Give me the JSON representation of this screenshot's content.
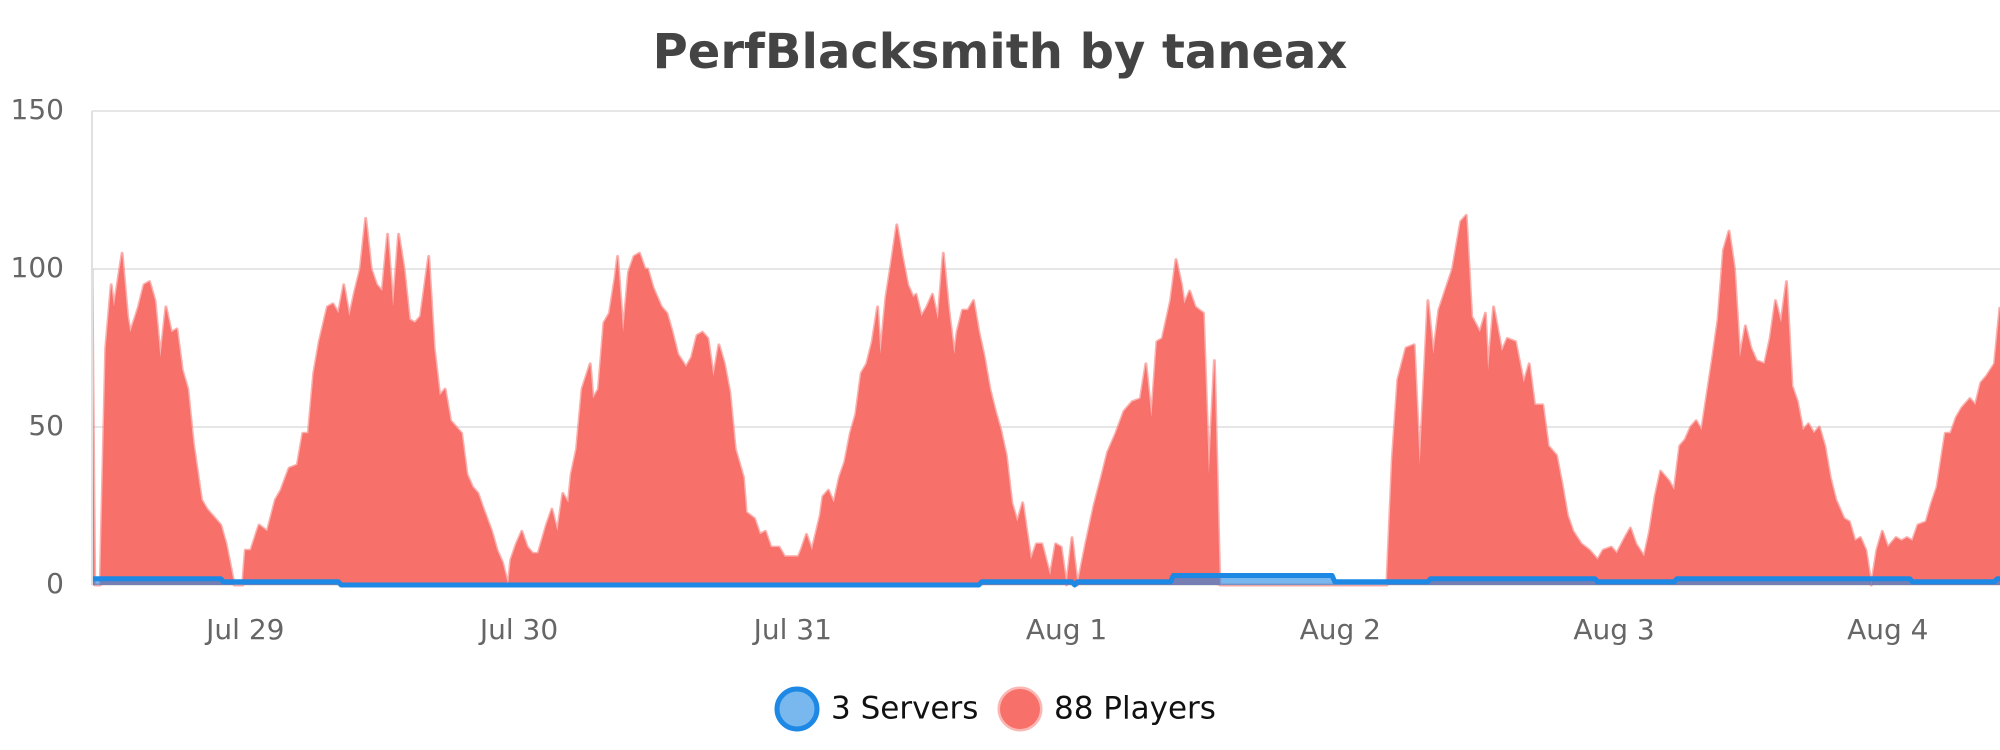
{
  "chart_data": {
    "type": "area",
    "title": "PerfBlacksmith by taneax",
    "xlim": [
      -0.56,
      6.41
    ],
    "xticks": [
      {
        "value": 0,
        "label": "Jul 29"
      },
      {
        "value": 1,
        "label": "Jul 30"
      },
      {
        "value": 2,
        "label": "Jul 31"
      },
      {
        "value": 3,
        "label": "Aug 1"
      },
      {
        "value": 4,
        "label": "Aug 2"
      },
      {
        "value": 5,
        "label": "Aug 3"
      },
      {
        "value": 6,
        "label": "Aug 4"
      }
    ],
    "ylim": [
      0,
      150
    ],
    "yticks": [
      0,
      50,
      100,
      150
    ],
    "grid": true,
    "series": [
      {
        "name": "3 Servers",
        "color": "#1e88e5",
        "x": [
          -0.56,
          -0.09,
          -0.08,
          0.34,
          0.35,
          2.68,
          2.69,
          3.02,
          3.03,
          3.04,
          3.38,
          3.39,
          3.97,
          3.98,
          4.32,
          4.33,
          4.93,
          4.94,
          5.22,
          5.23,
          6.08,
          6.09,
          6.39,
          6.4,
          6.41
        ],
        "values": [
          2,
          2,
          1,
          1,
          0,
          0,
          1,
          1,
          0,
          1,
          1,
          3,
          3,
          1,
          1,
          2,
          2,
          1,
          1,
          2,
          2,
          1,
          1,
          2,
          2
        ]
      },
      {
        "name": "88 Players",
        "color": "#f7706a",
        "x": [
          -0.56,
          -0.55,
          -0.53,
          -0.51,
          -0.49,
          -0.48,
          -0.45,
          -0.43,
          -0.42,
          -0.39,
          -0.37,
          -0.35,
          -0.33,
          -0.31,
          -0.29,
          -0.27,
          -0.25,
          -0.23,
          -0.21,
          -0.19,
          -0.16,
          -0.14,
          -0.11,
          -0.09,
          -0.07,
          -0.04,
          -0.01,
          0.0,
          0.02,
          0.05,
          0.08,
          0.11,
          0.13,
          0.16,
          0.19,
          0.21,
          0.23,
          0.25,
          0.27,
          0.3,
          0.32,
          0.34,
          0.36,
          0.38,
          0.4,
          0.42,
          0.44,
          0.46,
          0.48,
          0.5,
          0.52,
          0.54,
          0.56,
          0.58,
          0.6,
          0.62,
          0.64,
          0.67,
          0.69,
          0.71,
          0.73,
          0.75,
          0.77,
          0.79,
          0.81,
          0.83,
          0.85,
          0.87,
          0.9,
          0.92,
          0.94,
          0.96,
          0.97,
          0.99,
          1.01,
          1.03,
          1.05,
          1.07,
          1.1,
          1.12,
          1.14,
          1.16,
          1.18,
          1.19,
          1.21,
          1.23,
          1.26,
          1.27,
          1.29,
          1.31,
          1.33,
          1.35,
          1.36,
          1.38,
          1.4,
          1.42,
          1.44,
          1.46,
          1.47,
          1.49,
          1.52,
          1.54,
          1.56,
          1.58,
          1.61,
          1.63,
          1.65,
          1.67,
          1.69,
          1.71,
          1.73,
          1.75,
          1.77,
          1.79,
          1.82,
          1.83,
          1.86,
          1.88,
          1.9,
          1.92,
          1.95,
          1.97,
          1.99,
          2.02,
          2.03,
          2.05,
          2.07,
          2.1,
          2.11,
          2.13,
          2.15,
          2.17,
          2.19,
          2.21,
          2.23,
          2.25,
          2.27,
          2.29,
          2.31,
          2.32,
          2.34,
          2.36,
          2.38,
          2.4,
          2.42,
          2.44,
          2.45,
          2.47,
          2.49,
          2.51,
          2.53,
          2.55,
          2.57,
          2.59,
          2.6,
          2.62,
          2.64,
          2.66,
          2.68,
          2.7,
          2.72,
          2.74,
          2.76,
          2.78,
          2.8,
          2.82,
          2.84,
          2.86,
          2.87,
          2.89,
          2.91,
          2.94,
          2.96,
          2.98,
          3.0,
          3.02,
          3.04,
          3.07,
          3.1,
          3.13,
          3.15,
          3.18,
          3.21,
          3.24,
          3.27,
          3.29,
          3.31,
          3.33,
          3.35,
          3.38,
          3.4,
          3.42,
          3.43,
          3.45,
          3.47,
          3.5,
          3.52,
          3.54,
          3.56,
          3.77,
          4.17,
          4.19,
          4.21,
          4.24,
          4.27,
          4.29,
          4.32,
          4.34,
          4.36,
          4.41,
          4.44,
          4.46,
          4.48,
          4.51,
          4.53,
          4.54,
          4.56,
          4.59,
          4.61,
          4.64,
          4.67,
          4.69,
          4.71,
          4.74,
          4.76,
          4.79,
          4.81,
          4.83,
          4.85,
          4.88,
          4.91,
          4.94,
          4.96,
          4.99,
          5.01,
          5.04,
          5.06,
          5.08,
          5.11,
          5.13,
          5.15,
          5.17,
          5.2,
          5.22,
          5.24,
          5.26,
          5.28,
          5.3,
          5.32,
          5.36,
          5.38,
          5.4,
          5.42,
          5.44,
          5.46,
          5.48,
          5.5,
          5.52,
          5.55,
          5.57,
          5.59,
          5.61,
          5.63,
          5.65,
          5.67,
          5.69,
          5.71,
          5.73,
          5.75,
          5.77,
          5.79,
          5.81,
          5.84,
          5.86,
          5.88,
          5.9,
          5.92,
          5.94,
          5.96,
          5.98,
          6.0,
          6.03,
          6.05,
          6.07,
          6.09,
          6.11,
          6.14,
          6.16,
          6.18,
          6.21,
          6.23,
          6.25,
          6.27,
          6.3,
          6.32,
          6.34,
          6.36,
          6.39,
          6.41
        ],
        "values": [
          100,
          0,
          0,
          75,
          95,
          88,
          105,
          85,
          80,
          88,
          95,
          96,
          90,
          72,
          88,
          80,
          81,
          68,
          62,
          45,
          27,
          24,
          21,
          19,
          13,
          0,
          0,
          11,
          11,
          19,
          17,
          27,
          30,
          37,
          38,
          48,
          48,
          67,
          77,
          88,
          89,
          86,
          95,
          85,
          93,
          100,
          116,
          100,
          95,
          93,
          111,
          88,
          111,
          100,
          84,
          83,
          85,
          104,
          75,
          60,
          62,
          52,
          50,
          48,
          35,
          31,
          29,
          24,
          17,
          11,
          7,
          0,
          8,
          13,
          17,
          12,
          10,
          10,
          19,
          24,
          17,
          29,
          26,
          35,
          43,
          62,
          70,
          59,
          62,
          83,
          86,
          97,
          104,
          80,
          99,
          104,
          105,
          100,
          100,
          94,
          88,
          86,
          80,
          73,
          69,
          72,
          79,
          80,
          78,
          66,
          76,
          70,
          61,
          43,
          34,
          23,
          21,
          16,
          17,
          12,
          12,
          9,
          9,
          9,
          11,
          16,
          11,
          22,
          28,
          30,
          26,
          34,
          39,
          48,
          54,
          67,
          70,
          77,
          88,
          73,
          91,
          102,
          114,
          104,
          95,
          91,
          92,
          85,
          88,
          92,
          84,
          105,
          87,
          73,
          80,
          87,
          87,
          90,
          80,
          72,
          62,
          55,
          49,
          41,
          26,
          20,
          26,
          14,
          8,
          13,
          13,
          3,
          13,
          12,
          0,
          15,
          0,
          13,
          25,
          35,
          42,
          48,
          55,
          58,
          59,
          70,
          53,
          77,
          78,
          90,
          103,
          95,
          89,
          93,
          88,
          86,
          35,
          71,
          0,
          0,
          0,
          40,
          65,
          75,
          76,
          38,
          90,
          73,
          87,
          100,
          115,
          117,
          85,
          80,
          86,
          68,
          88,
          74,
          78,
          77,
          64,
          70,
          57,
          57,
          44,
          41,
          32,
          22,
          17,
          13,
          11,
          8,
          11,
          12,
          10,
          15,
          18,
          13,
          9,
          17,
          28,
          36,
          33,
          30,
          44,
          46,
          50,
          52,
          49,
          72,
          84,
          106,
          112,
          100,
          72,
          82,
          75,
          71,
          70,
          78,
          90,
          83,
          96,
          63,
          58,
          49,
          51,
          48,
          50,
          44,
          34,
          27,
          21,
          20,
          14,
          15,
          11,
          0,
          11,
          17,
          12,
          15,
          14,
          15,
          14,
          19,
          20,
          26,
          31,
          48,
          48,
          53,
          56,
          59,
          57,
          64,
          66,
          70,
          88
        ]
      }
    ]
  }
}
